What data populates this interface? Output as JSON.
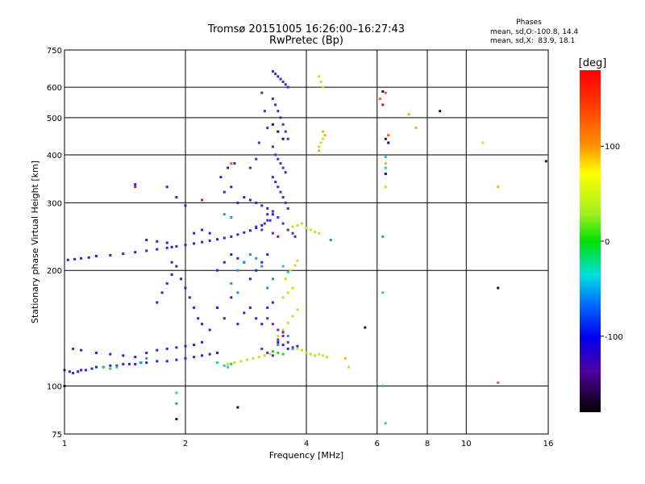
{
  "chart_data": {
    "type": "scatter",
    "title": "Tromsø 20151005 16:26:00–16:27:43",
    "subtitle": "RwPretec (Bp)",
    "xlabel": "Frequency [MHz]",
    "ylabel": "Stationary phase Virtual Height [km]",
    "x_scale": "log",
    "y_scale": "log",
    "xlim": [
      1,
      16
    ],
    "ylim": [
      75,
      750
    ],
    "x_ticks": [
      1,
      2,
      4,
      6,
      8,
      10,
      16
    ],
    "y_ticks": [
      75,
      100,
      200,
      300,
      400,
      500,
      600,
      750
    ],
    "grid": true,
    "stats": {
      "heading": "Phases",
      "line_o": "mean, sd,O:-100.8, 14.4",
      "line_x": "mean, sd,X:  83.9, 18.1"
    },
    "colorbar": {
      "label": "[deg]",
      "range": [
        -180,
        180
      ],
      "ticks": [
        100,
        0,
        -100
      ],
      "tick_labels": [
        "100",
        "0",
        "-100"
      ]
    },
    "series": [
      {
        "color": "#2424d8",
        "points": [
          [
            1.0,
            110
          ],
          [
            1.03,
            109
          ],
          [
            1.05,
            108
          ],
          [
            1.08,
            109
          ],
          [
            1.1,
            110
          ],
          [
            1.13,
            110
          ],
          [
            1.17,
            111
          ],
          [
            1.2,
            112
          ],
          [
            1.25,
            112
          ],
          [
            1.3,
            113
          ],
          [
            1.35,
            113
          ],
          [
            1.4,
            114
          ],
          [
            1.45,
            114
          ],
          [
            1.5,
            114
          ],
          [
            1.55,
            115
          ],
          [
            1.6,
            115
          ],
          [
            1.7,
            116
          ],
          [
            1.8,
            116
          ],
          [
            1.9,
            117
          ],
          [
            2.0,
            118
          ],
          [
            2.1,
            119
          ],
          [
            2.2,
            120
          ],
          [
            2.3,
            121
          ],
          [
            2.4,
            122
          ],
          [
            1.05,
            125
          ],
          [
            1.1,
            124
          ],
          [
            1.2,
            122
          ],
          [
            1.3,
            121
          ],
          [
            1.4,
            120
          ],
          [
            1.5,
            119
          ],
          [
            1.6,
            122
          ],
          [
            1.7,
            124
          ],
          [
            1.8,
            125
          ],
          [
            1.9,
            126
          ],
          [
            2.0,
            127
          ],
          [
            2.1,
            128
          ],
          [
            2.2,
            130
          ],
          [
            1.02,
            213
          ],
          [
            1.06,
            214
          ],
          [
            1.1,
            215
          ],
          [
            1.15,
            216
          ],
          [
            1.2,
            218
          ],
          [
            1.3,
            219
          ],
          [
            1.4,
            221
          ],
          [
            1.5,
            223
          ],
          [
            1.6,
            225
          ],
          [
            1.7,
            227
          ],
          [
            1.8,
            229
          ],
          [
            1.9,
            231
          ],
          [
            2.0,
            233
          ],
          [
            2.1,
            235
          ],
          [
            2.2,
            237
          ],
          [
            2.3,
            239
          ],
          [
            2.4,
            241
          ],
          [
            2.5,
            243
          ],
          [
            2.6,
            245
          ],
          [
            2.7,
            248
          ],
          [
            2.8,
            251
          ],
          [
            2.9,
            254
          ],
          [
            3.0,
            258
          ],
          [
            3.1,
            262
          ],
          [
            1.6,
            240
          ],
          [
            1.7,
            238
          ],
          [
            1.8,
            236
          ],
          [
            1.85,
            230
          ],
          [
            1.85,
            210
          ],
          [
            1.85,
            195
          ],
          [
            1.8,
            185
          ],
          [
            1.75,
            175
          ],
          [
            1.7,
            165
          ],
          [
            1.9,
            205
          ],
          [
            1.95,
            190
          ],
          [
            2.0,
            180
          ],
          [
            2.05,
            170
          ],
          [
            2.1,
            160
          ],
          [
            2.15,
            150
          ],
          [
            2.2,
            145
          ],
          [
            2.3,
            140
          ],
          [
            2.4,
            160
          ],
          [
            2.5,
            150
          ],
          [
            2.6,
            170
          ],
          [
            2.7,
            145
          ],
          [
            2.8,
            155
          ],
          [
            2.9,
            160
          ],
          [
            3.0,
            150
          ],
          [
            3.1,
            145
          ],
          [
            3.2,
            160
          ],
          [
            3.3,
            165
          ],
          [
            3.4,
            130
          ],
          [
            3.5,
            128
          ],
          [
            3.6,
            125
          ],
          [
            3.7,
            126
          ],
          [
            3.8,
            127
          ],
          [
            2.4,
            200
          ],
          [
            2.5,
            210
          ],
          [
            2.6,
            220
          ],
          [
            2.7,
            215
          ],
          [
            2.8,
            210
          ],
          [
            2.9,
            190
          ],
          [
            3.0,
            200
          ],
          [
            3.1,
            210
          ],
          [
            3.2,
            220
          ],
          [
            2.5,
            320
          ],
          [
            2.6,
            330
          ],
          [
            2.7,
            300
          ],
          [
            2.8,
            310
          ],
          [
            2.9,
            305
          ],
          [
            3.0,
            300
          ],
          [
            3.1,
            295
          ],
          [
            3.2,
            290
          ],
          [
            3.3,
            280
          ],
          [
            2.45,
            350
          ],
          [
            2.55,
            370
          ],
          [
            2.65,
            380
          ],
          [
            1.8,
            330
          ],
          [
            1.9,
            310
          ],
          [
            2.0,
            295
          ],
          [
            1.5,
            335
          ],
          [
            2.1,
            250
          ],
          [
            2.2,
            255
          ],
          [
            2.3,
            250
          ]
        ]
      },
      {
        "color": "#3434c8",
        "points": [
          [
            3.3,
            660
          ],
          [
            3.35,
            650
          ],
          [
            3.4,
            640
          ],
          [
            3.45,
            630
          ],
          [
            3.5,
            620
          ],
          [
            3.55,
            610
          ],
          [
            3.6,
            600
          ],
          [
            3.3,
            560
          ],
          [
            3.35,
            540
          ],
          [
            3.4,
            520
          ],
          [
            3.45,
            500
          ],
          [
            3.5,
            480
          ],
          [
            3.55,
            460
          ],
          [
            3.6,
            440
          ],
          [
            3.3,
            420
          ],
          [
            3.35,
            400
          ],
          [
            3.4,
            390
          ],
          [
            3.45,
            380
          ],
          [
            3.5,
            370
          ],
          [
            3.55,
            360
          ],
          [
            3.3,
            350
          ],
          [
            3.35,
            340
          ],
          [
            3.4,
            330
          ],
          [
            3.45,
            320
          ],
          [
            3.5,
            310
          ],
          [
            3.55,
            300
          ],
          [
            3.6,
            290
          ],
          [
            3.3,
            285
          ],
          [
            3.4,
            275
          ],
          [
            3.5,
            265
          ],
          [
            3.6,
            255
          ],
          [
            3.7,
            250
          ],
          [
            3.75,
            245
          ],
          [
            3.2,
            280
          ],
          [
            3.25,
            270
          ],
          [
            3.15,
            265
          ],
          [
            3.1,
            580
          ],
          [
            3.15,
            520
          ],
          [
            3.2,
            470
          ],
          [
            3.05,
            430
          ],
          [
            3.0,
            390
          ],
          [
            2.9,
            370
          ]
        ]
      },
      {
        "color": "#6a22c8",
        "points": [
          [
            3.0,
            260
          ],
          [
            3.1,
            255
          ],
          [
            3.2,
            270
          ],
          [
            3.3,
            250
          ],
          [
            3.4,
            245
          ],
          [
            3.2,
            150
          ],
          [
            3.3,
            145
          ],
          [
            3.4,
            140
          ],
          [
            3.5,
            135
          ],
          [
            3.1,
            125
          ],
          [
            3.2,
            122
          ],
          [
            3.3,
            120
          ],
          [
            3.4,
            132
          ],
          [
            3.5,
            138
          ],
          [
            3.6,
            130
          ]
        ]
      },
      {
        "color": "#2a8ed8",
        "points": [
          [
            2.7,
            200
          ],
          [
            2.8,
            210
          ],
          [
            2.9,
            220
          ],
          [
            3.0,
            215
          ],
          [
            3.1,
            205
          ],
          [
            2.6,
            185
          ],
          [
            2.7,
            175
          ],
          [
            3.2,
            180
          ],
          [
            3.3,
            190
          ],
          [
            2.5,
            280
          ],
          [
            2.6,
            275
          ],
          [
            3.6,
            135
          ],
          [
            3.7,
            125
          ],
          [
            1.55,
            115
          ],
          [
            1.6,
            118
          ],
          [
            1.9,
            90
          ],
          [
            3.4,
            128
          ],
          [
            4.6,
            240
          ],
          [
            6.2,
            245
          ]
        ]
      },
      {
        "color": "#20c8c8",
        "points": [
          [
            2.4,
            115
          ],
          [
            2.5,
            113
          ],
          [
            2.55,
            112
          ],
          [
            3.5,
            205
          ],
          [
            3.6,
            198
          ],
          [
            6.3,
            395
          ],
          [
            6.3,
            370
          ],
          [
            6.2,
            175
          ],
          [
            6.2,
            100
          ],
          [
            6.3,
            80
          ],
          [
            1.9,
            96
          ]
        ]
      },
      {
        "color": "#34c834",
        "points": [
          [
            1.25,
            112
          ],
          [
            1.3,
            111
          ],
          [
            1.35,
            112
          ],
          [
            2.6,
            114
          ],
          [
            3.3,
            123
          ],
          [
            3.4,
            122
          ],
          [
            3.5,
            121
          ]
        ]
      },
      {
        "color": "#c8e020",
        "points": [
          [
            2.55,
            114
          ],
          [
            2.65,
            115
          ],
          [
            2.75,
            116
          ],
          [
            2.85,
            117
          ],
          [
            2.95,
            118
          ],
          [
            3.05,
            119
          ],
          [
            3.15,
            120
          ],
          [
            3.25,
            121
          ],
          [
            3.4,
            135
          ],
          [
            3.5,
            140
          ],
          [
            3.6,
            146
          ],
          [
            3.7,
            152
          ],
          [
            3.8,
            158
          ],
          [
            3.5,
            170
          ],
          [
            3.6,
            175
          ],
          [
            3.7,
            180
          ],
          [
            3.55,
            190
          ],
          [
            3.65,
            200
          ],
          [
            3.75,
            206
          ],
          [
            3.8,
            212
          ],
          [
            3.7,
            260
          ],
          [
            3.8,
            262
          ],
          [
            3.9,
            265
          ],
          [
            4.0,
            258
          ],
          [
            4.1,
            255
          ],
          [
            4.2,
            252
          ],
          [
            4.3,
            250
          ],
          [
            3.8,
            125
          ],
          [
            3.9,
            124
          ],
          [
            4.0,
            122
          ],
          [
            4.1,
            121
          ],
          [
            4.2,
            120
          ],
          [
            4.3,
            121
          ],
          [
            4.4,
            120
          ],
          [
            4.5,
            119
          ],
          [
            4.3,
            420
          ],
          [
            4.35,
            430
          ],
          [
            4.4,
            440
          ],
          [
            4.3,
            640
          ],
          [
            4.35,
            620
          ],
          [
            4.4,
            600
          ],
          [
            5.1,
            112
          ],
          [
            6.3,
            330
          ],
          [
            11.0,
            430
          ]
        ]
      },
      {
        "color": "#f0b020",
        "points": [
          [
            4.4,
            460
          ],
          [
            4.45,
            450
          ],
          [
            4.3,
            410
          ],
          [
            5.0,
            118
          ],
          [
            6.3,
            380
          ],
          [
            7.2,
            510
          ],
          [
            7.5,
            470
          ],
          [
            12.0,
            330
          ]
        ]
      },
      {
        "color": "#ff5820",
        "points": [
          [
            6.1,
            560
          ],
          [
            6.3,
            580
          ],
          [
            6.4,
            450
          ],
          [
            2.6,
            380
          ],
          [
            12.0,
            102
          ]
        ]
      },
      {
        "color": "#d01818",
        "points": [
          [
            1.5,
            330
          ],
          [
            2.2,
            305
          ],
          [
            6.2,
            540
          ]
        ]
      },
      {
        "color": "#101060",
        "points": [
          [
            3.3,
            480
          ],
          [
            3.4,
            460
          ],
          [
            3.5,
            440
          ],
          [
            5.6,
            142
          ],
          [
            6.2,
            585
          ],
          [
            6.3,
            440
          ],
          [
            6.3,
            357
          ],
          [
            6.4,
            430
          ],
          [
            8.6,
            520
          ],
          [
            12.0,
            180
          ],
          [
            15.8,
            385
          ],
          [
            1.0,
            100
          ],
          [
            1.9,
            82
          ],
          [
            2.7,
            88
          ]
        ]
      }
    ]
  }
}
